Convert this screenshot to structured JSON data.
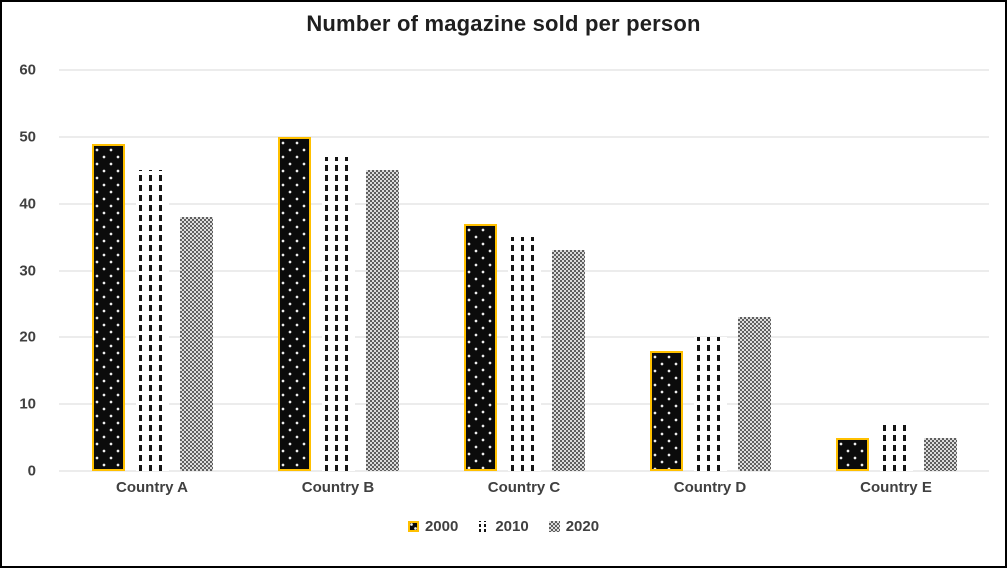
{
  "title": "Number of magazine sold per person",
  "chart_data": {
    "type": "bar",
    "title": "Number of magazine sold per person",
    "categories": [
      "Country A",
      "Country B",
      "Country C",
      "Country D",
      "Country E"
    ],
    "series": [
      {
        "name": "2000",
        "values": [
          49,
          50,
          37,
          18,
          5
        ]
      },
      {
        "name": "2010",
        "values": [
          45,
          47,
          35,
          20,
          7
        ]
      },
      {
        "name": "2020",
        "values": [
          38,
          45,
          33,
          23,
          5
        ]
      }
    ],
    "xlabel": "",
    "ylabel": "",
    "ylim": [
      0,
      60
    ],
    "yticks": [
      0,
      10,
      20,
      30,
      40,
      50,
      60
    ],
    "grid": true,
    "legend_position": "bottom"
  },
  "legend": {
    "items": [
      {
        "label": "2000"
      },
      {
        "label": "2010"
      },
      {
        "label": "2020"
      }
    ]
  },
  "colors": {
    "series_2000_fill": "#0b0b0b",
    "series_2000_border": "#ffc000",
    "series_2010_pattern": "#141414",
    "series_2020_gray": "#7f7f7f",
    "gridline": "#d9d9d9",
    "axis_text": "#404040",
    "title_text": "#1f1f1f",
    "background": "#ffffff",
    "frame_border": "#000000"
  }
}
